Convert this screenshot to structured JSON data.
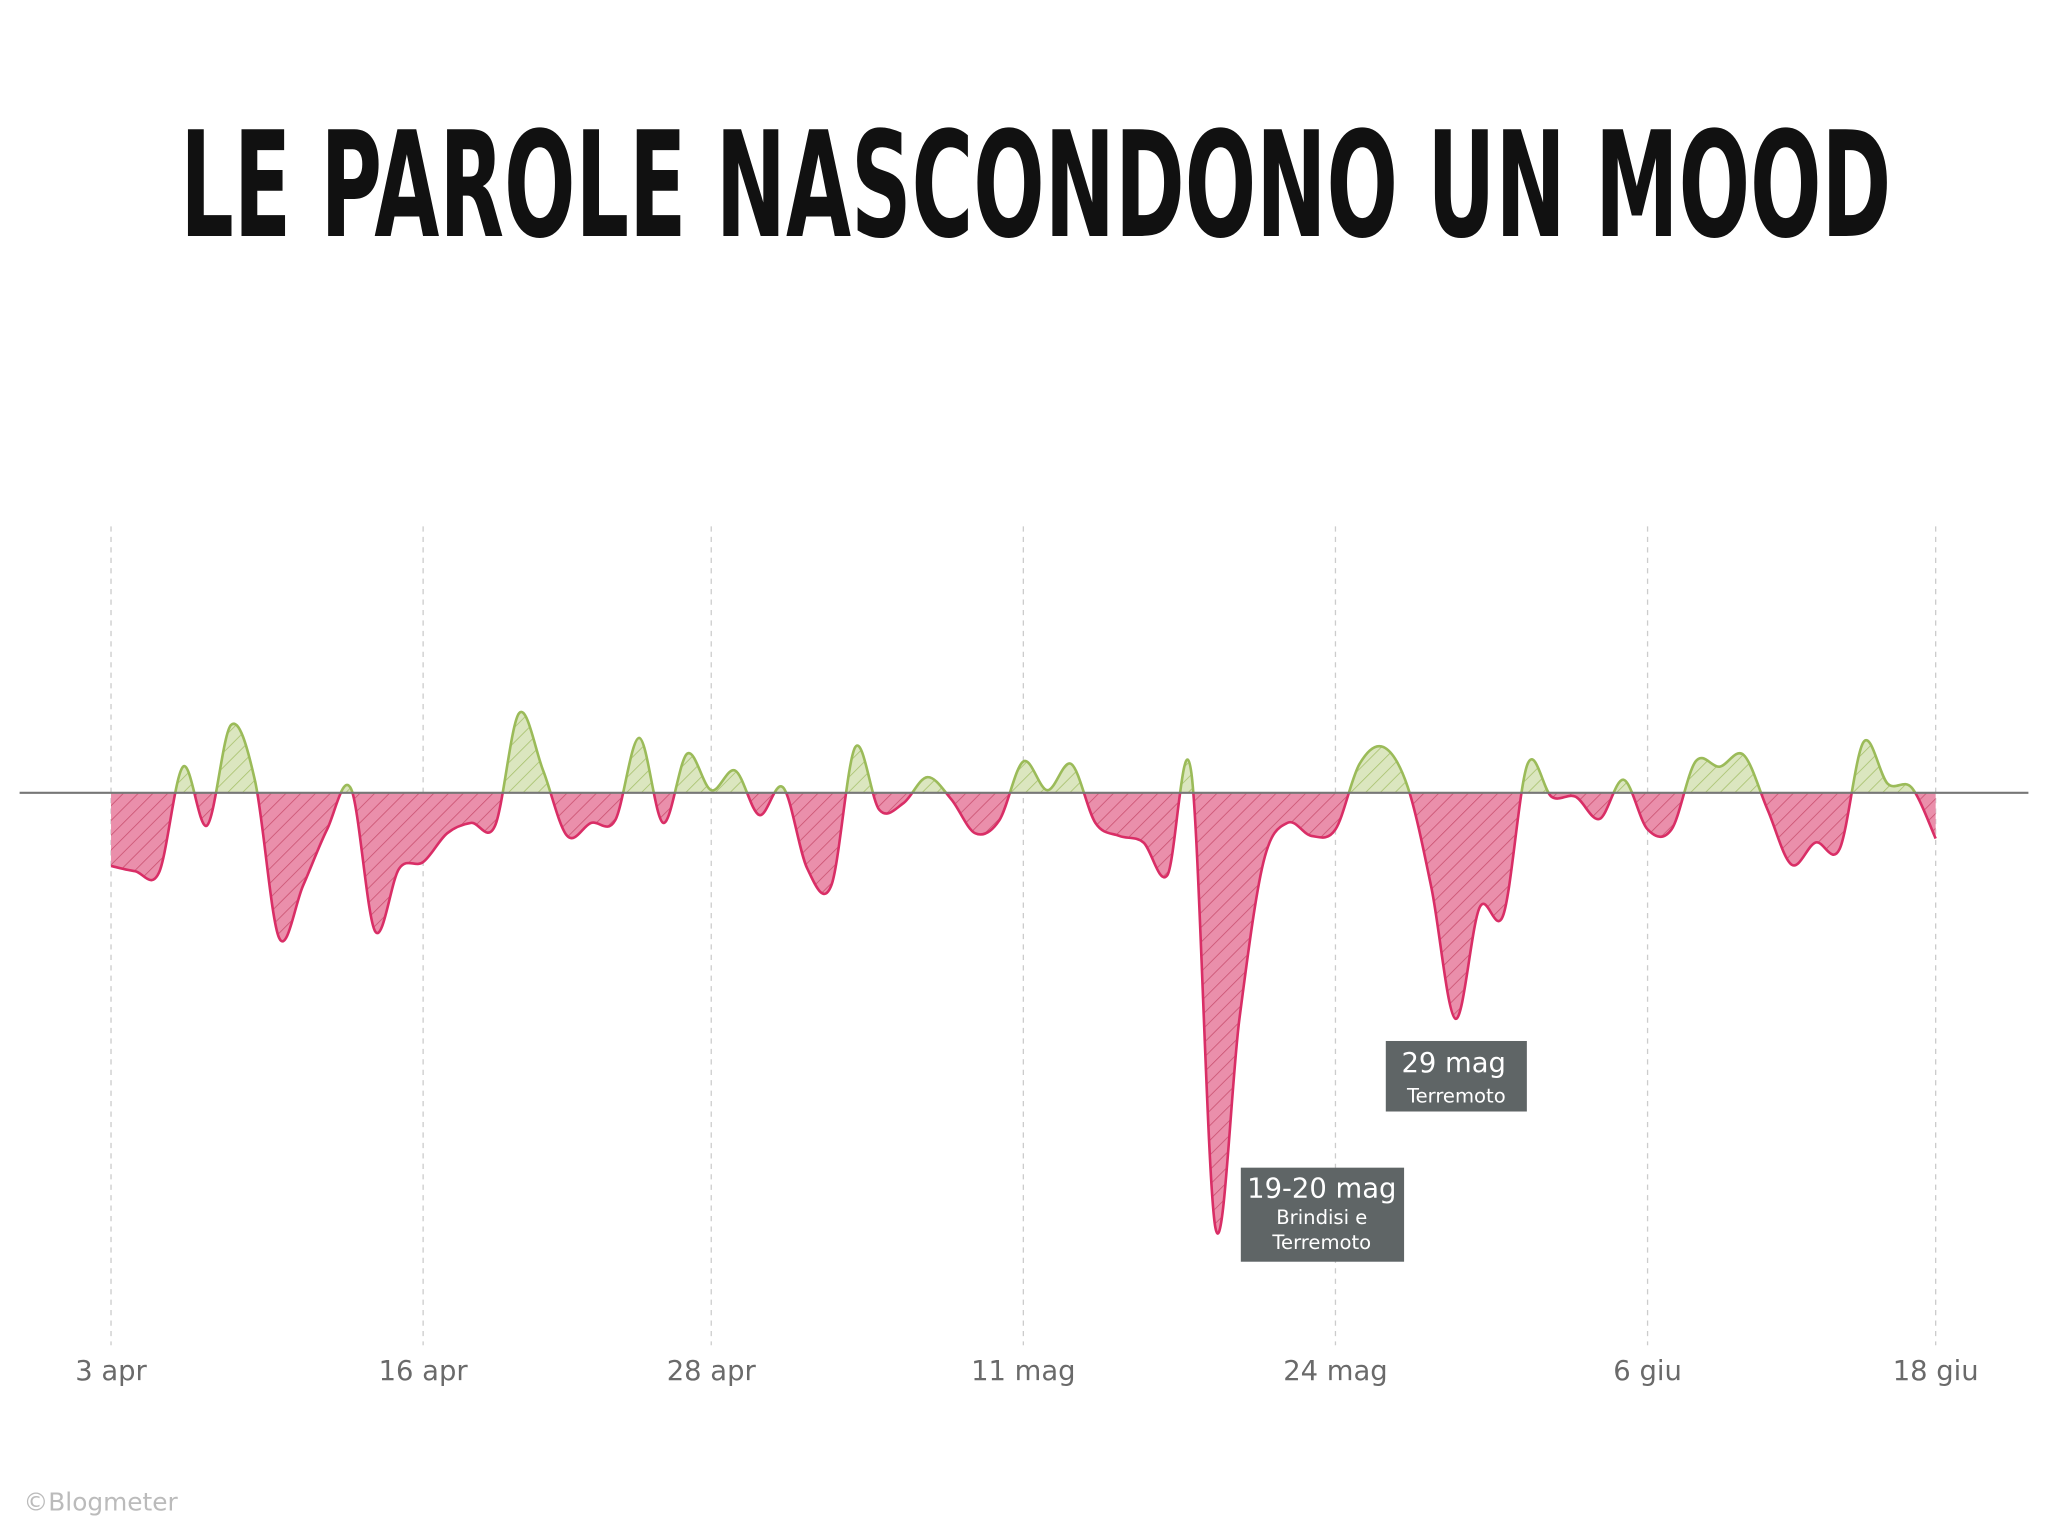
{
  "chart_data": {
    "type": "area",
    "title": "LE PAROLE NASCONDONO UN MOOD",
    "credit": "©Blogmeter",
    "categories": [
      "3 apr",
      null,
      null,
      null,
      null,
      null,
      null,
      null,
      null,
      null,
      null,
      null,
      null,
      "16 apr",
      null,
      null,
      null,
      null,
      null,
      null,
      null,
      null,
      null,
      null,
      null,
      "28 apr",
      null,
      null,
      null,
      null,
      null,
      null,
      null,
      null,
      null,
      null,
      null,
      null,
      "11 mag",
      null,
      null,
      null,
      null,
      null,
      null,
      null,
      null,
      null,
      null,
      null,
      null,
      "24 mag",
      null,
      null,
      null,
      null,
      null,
      null,
      null,
      null,
      null,
      null,
      null,
      null,
      "6 giu",
      null,
      null,
      null,
      null,
      null,
      null,
      null,
      null,
      null,
      null,
      null,
      "18 giu"
    ],
    "values": [
      -0.56,
      -0.6,
      -0.61,
      0.2,
      -0.25,
      0.52,
      0.09,
      -1.11,
      -0.71,
      -0.28,
      0.03,
      -1.06,
      -0.58,
      -0.53,
      -0.31,
      -0.23,
      -0.25,
      0.61,
      0.17,
      -0.33,
      -0.23,
      -0.21,
      0.42,
      -0.23,
      0.3,
      0.02,
      0.17,
      -0.17,
      0.04,
      -0.58,
      -0.71,
      0.35,
      -0.13,
      -0.08,
      0.12,
      -0.05,
      -0.31,
      -0.21,
      0.24,
      0.02,
      0.22,
      -0.23,
      -0.33,
      -0.38,
      -0.63,
      0.15,
      -3.33,
      -1.73,
      -0.53,
      -0.23,
      -0.33,
      -0.28,
      0.22,
      0.35,
      0.05,
      -0.73,
      -1.73,
      -0.88,
      -0.93,
      0.22,
      -0.03,
      -0.03,
      -0.2,
      0.1,
      -0.28,
      -0.28,
      0.24,
      0.2,
      0.29,
      -0.13,
      -0.55,
      -0.38,
      -0.43,
      0.39,
      0.07,
      0.04,
      -0.35
    ],
    "positive_color": "#9bbb59",
    "negative_color": "#d92e66",
    "ylim": [
      -4.23,
      2.04
    ],
    "grid": true,
    "annotations": [
      {
        "title": "29 mag",
        "text": [
          "Terremoto"
        ]
      },
      {
        "title": "19-20 mag",
        "text": [
          "Brindisi e",
          "Terremoto"
        ]
      }
    ]
  }
}
